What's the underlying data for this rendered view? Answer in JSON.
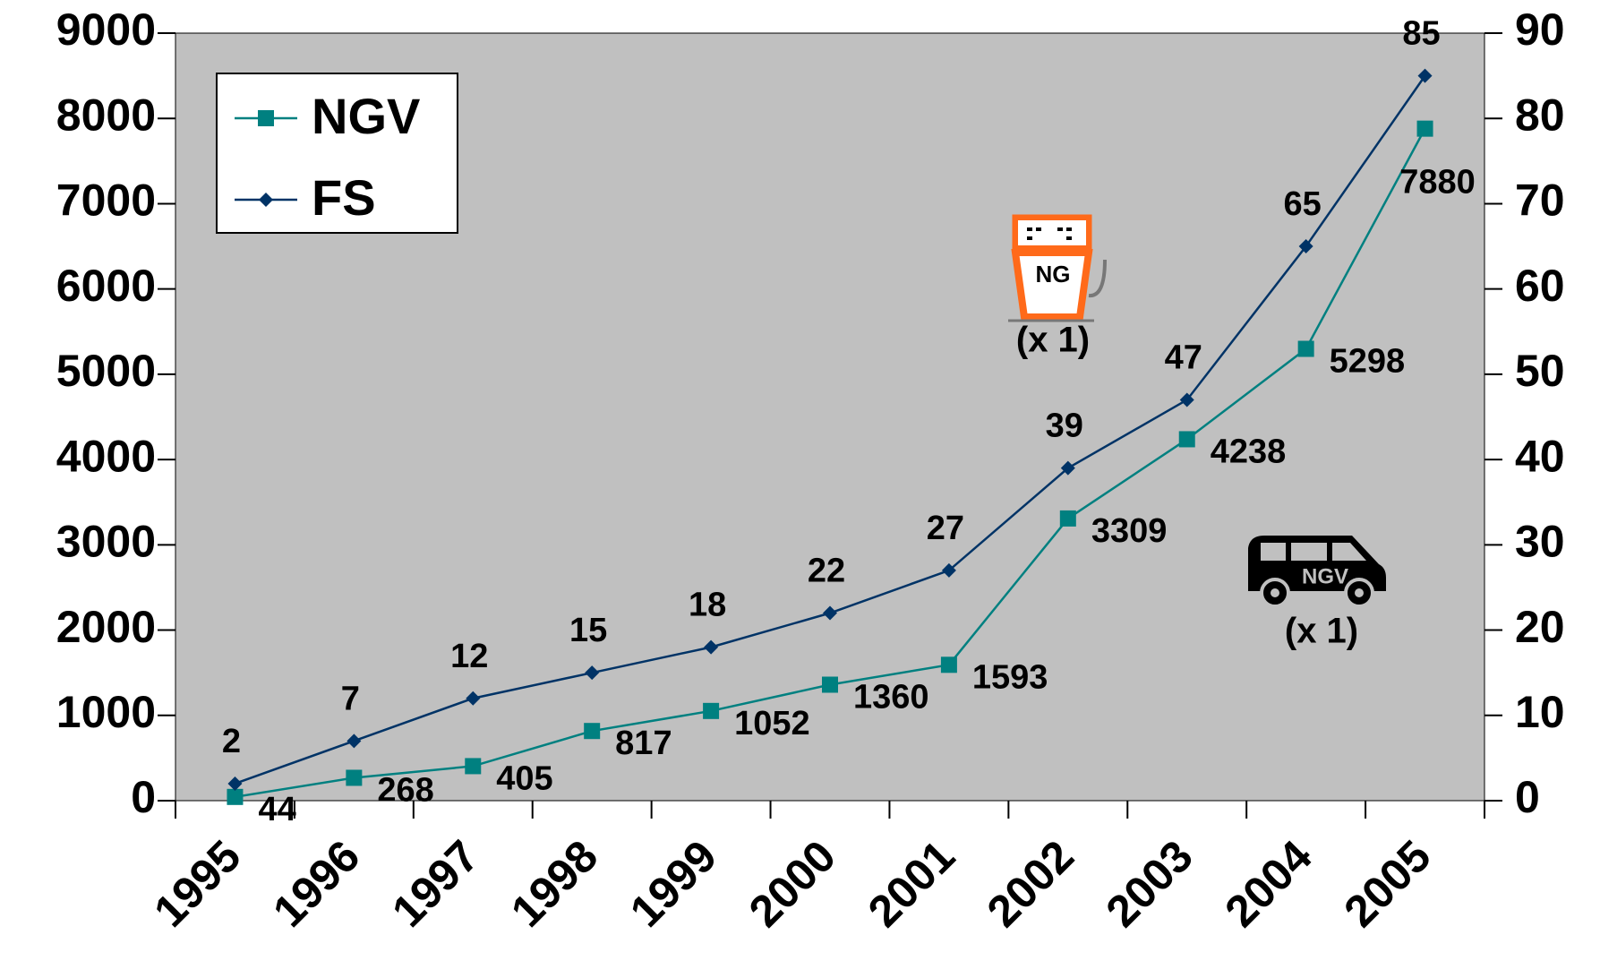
{
  "chart_data": {
    "type": "line",
    "categories": [
      "1995",
      "1996",
      "1997",
      "1998",
      "1999",
      "2000",
      "2001",
      "2002",
      "2003",
      "2004",
      "2005"
    ],
    "series": [
      {
        "name": "NGV",
        "color": "#008080",
        "marker": "square",
        "values": [
          44,
          268,
          405,
          817,
          1052,
          1360,
          1593,
          3309,
          4238,
          5298,
          7880
        ]
      },
      {
        "name": "FS",
        "color": "#003366",
        "marker": "diamond",
        "axis": "y2",
        "values": [
          2,
          7,
          12,
          15,
          18,
          22,
          27,
          39,
          47,
          65,
          85
        ]
      }
    ],
    "ylim": [
      0,
      9000
    ],
    "yticks": [
      0,
      1000,
      2000,
      3000,
      4000,
      5000,
      6000,
      7000,
      8000,
      9000
    ],
    "y2lim": [
      0,
      90
    ],
    "y2ticks": [
      0,
      10,
      20,
      30,
      40,
      50,
      60,
      70,
      80,
      90
    ],
    "legend": "top-left",
    "background": "#c0c0c0",
    "annotations": {
      "pump_label": "NG",
      "pump_note": "(x 1)",
      "van_label": "NGV",
      "van_note": "(x 1)"
    }
  }
}
